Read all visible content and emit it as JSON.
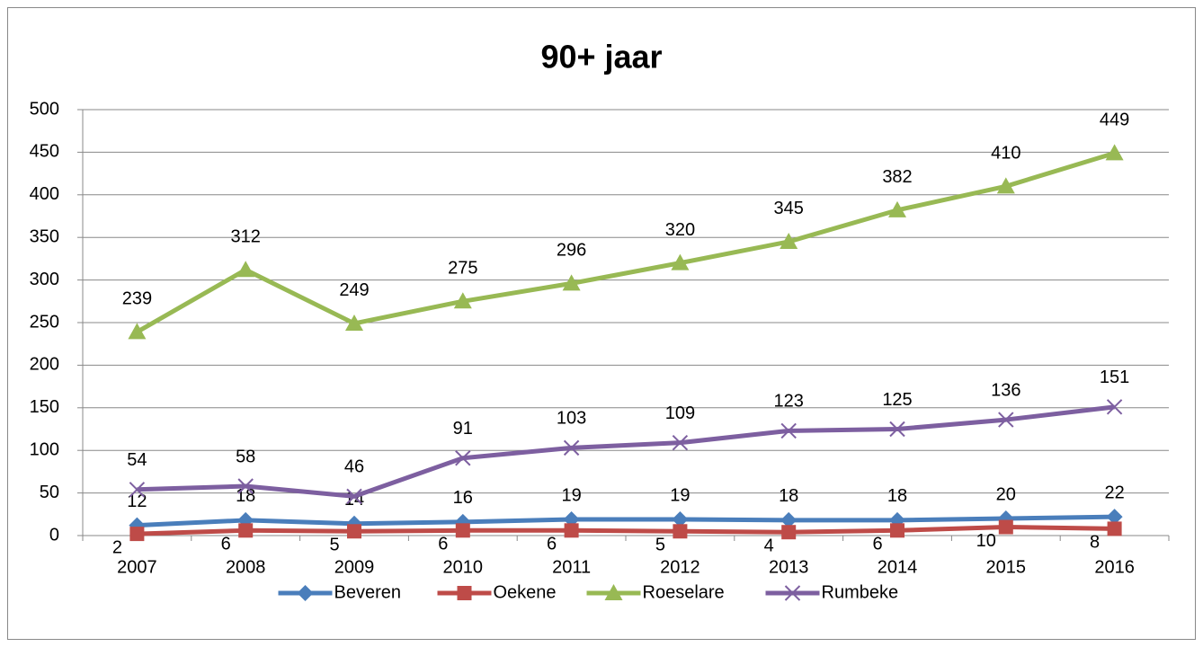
{
  "chart_data": {
    "type": "line",
    "title": "90+ jaar",
    "categories": [
      "2007",
      "2008",
      "2009",
      "2010",
      "2011",
      "2012",
      "2013",
      "2014",
      "2015",
      "2016"
    ],
    "series": [
      {
        "name": "Beveren",
        "color": "#4a7ebb",
        "marker": "diamond",
        "values": [
          12,
          18,
          14,
          16,
          19,
          19,
          18,
          18,
          20,
          22
        ]
      },
      {
        "name": "Oekene",
        "color": "#be4b48",
        "marker": "square",
        "values": [
          2,
          6,
          5,
          6,
          6,
          5,
          4,
          6,
          10,
          8
        ]
      },
      {
        "name": "Roeselare",
        "color": "#98b954",
        "marker": "triangle",
        "values": [
          239,
          312,
          249,
          275,
          296,
          320,
          345,
          382,
          410,
          449
        ]
      },
      {
        "name": "Rumbeke",
        "color": "#7d5fa0",
        "marker": "x",
        "values": [
          54,
          58,
          46,
          91,
          103,
          109,
          123,
          125,
          136,
          151
        ]
      }
    ],
    "ylim": [
      0,
      500
    ],
    "yticks": [
      0,
      50,
      100,
      150,
      200,
      250,
      300,
      350,
      400,
      450,
      500
    ],
    "grid": true,
    "legend": "bottom"
  }
}
